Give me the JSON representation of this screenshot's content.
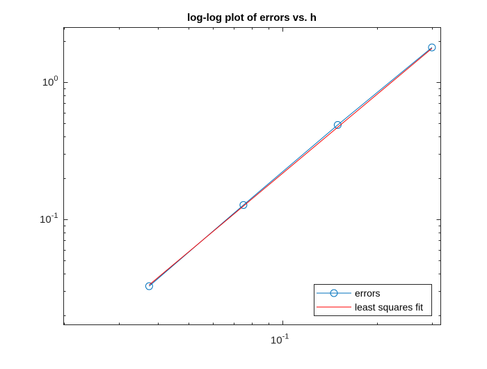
{
  "chart_data": {
    "type": "line",
    "title": "log-log plot of errors vs. h",
    "xlabel": "",
    "ylabel": "",
    "xscale": "log",
    "yscale": "log",
    "xlim": [
      0.02,
      0.32
    ],
    "ylim": [
      0.017,
      2.5
    ],
    "grid": false,
    "legend_position": "bottom-right",
    "x_ticks": [
      {
        "value": 0.1,
        "base": "10",
        "exp": "-1"
      }
    ],
    "y_ticks": [
      {
        "value": 0.1,
        "base": "10",
        "exp": "-1"
      },
      {
        "value": 1,
        "base": "10",
        "exp": "0"
      }
    ],
    "series": [
      {
        "name": "errors",
        "color": "#0072BD",
        "marker": "circle",
        "x": [
          0.0375,
          0.075,
          0.15,
          0.3
        ],
        "y": [
          0.0325,
          0.127,
          0.487,
          1.79
        ]
      },
      {
        "name": "least squares fit",
        "color": "#FF0000",
        "marker": "none",
        "x": [
          0.0375,
          0.3
        ],
        "y": [
          0.0332,
          1.76
        ]
      }
    ]
  }
}
